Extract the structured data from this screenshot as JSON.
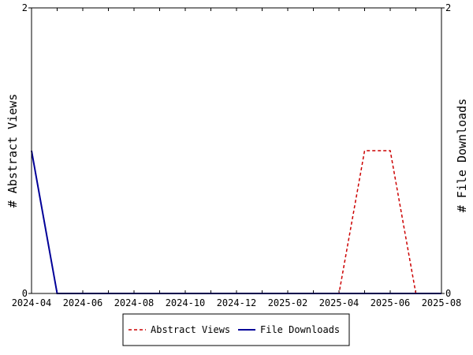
{
  "chart_data": {
    "type": "line",
    "x": [
      "2024-04",
      "2024-05",
      "2024-06",
      "2024-07",
      "2024-08",
      "2024-09",
      "2024-10",
      "2024-11",
      "2024-12",
      "2025-01",
      "2025-02",
      "2025-03",
      "2025-04",
      "2025-05",
      "2025-06",
      "2025-07",
      "2025-08"
    ],
    "x_tick_labels": [
      "2024-04",
      "2024-06",
      "2024-08",
      "2024-10",
      "2024-12",
      "2025-02",
      "2025-04",
      "2025-06",
      "2025-08"
    ],
    "series": [
      {
        "name": "Abstract Views",
        "axis": "left",
        "color": "#cc0000",
        "style": "dashed",
        "values": [
          1,
          0,
          0,
          0,
          0,
          0,
          0,
          0,
          0,
          0,
          0,
          0,
          0,
          1,
          1,
          0,
          0
        ]
      },
      {
        "name": "File Downloads",
        "axis": "right",
        "color": "#000099",
        "style": "solid",
        "values": [
          1,
          0,
          0,
          0,
          0,
          0,
          0,
          0,
          0,
          0,
          0,
          0,
          0,
          0,
          0,
          0,
          0
        ]
      }
    ],
    "ylabel_left": "# Abstract Views",
    "ylabel_right": "# File Downloads",
    "ylim_left": [
      0,
      2
    ],
    "ylim_right": [
      0,
      2
    ],
    "y_ticks_left": [
      "0",
      "2"
    ],
    "y_ticks_right": [
      "0",
      "2"
    ],
    "grid": false,
    "legend_position": "bottom"
  }
}
